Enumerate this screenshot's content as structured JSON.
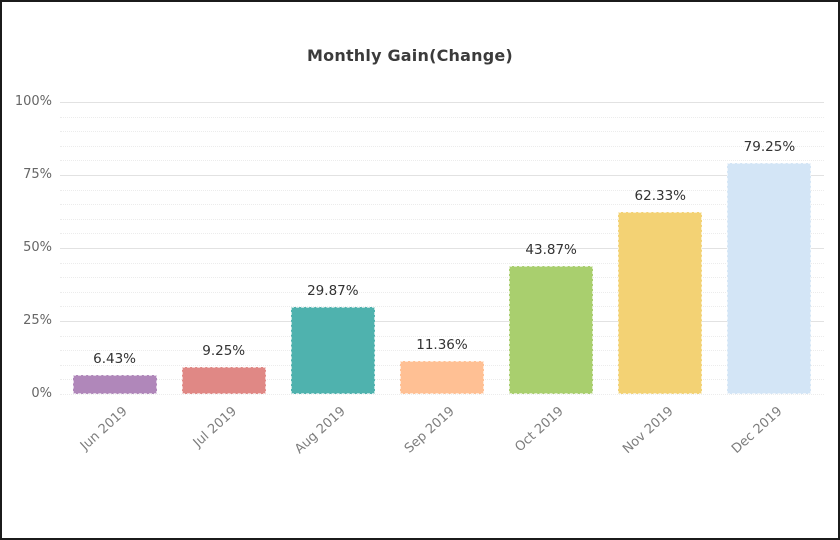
{
  "chart_data": {
    "type": "bar",
    "title": "Monthly Gain(Change)",
    "categories": [
      "Jun 2019",
      "Jul 2019",
      "Aug 2019",
      "Sep 2019",
      "Oct 2019",
      "Nov 2019",
      "Dec 2019"
    ],
    "values": [
      6.43,
      9.25,
      29.87,
      11.36,
      43.87,
      62.33,
      79.25
    ],
    "value_labels": [
      "6.43%",
      "9.25%",
      "29.87%",
      "11.36%",
      "43.87%",
      "62.33%",
      "79.25%"
    ],
    "bar_colors": [
      "#b087ba",
      "#e08885",
      "#4fb2ae",
      "#ffc094",
      "#a9cf6e",
      "#f3d274",
      "#d3e5f6"
    ],
    "xlabel": "",
    "ylabel": "",
    "ylim": [
      0,
      100
    ],
    "y_ticks": [
      {
        "value": 0,
        "label": "0%"
      },
      {
        "value": 25,
        "label": "25%"
      },
      {
        "value": 50,
        "label": "50%"
      },
      {
        "value": 75,
        "label": "75%"
      },
      {
        "value": 100,
        "label": "100%"
      }
    ],
    "y_minor_step": 5,
    "y_major_step": 25,
    "grid": "on",
    "legend": "none"
  },
  "style": {
    "background": "#ffffff",
    "frame_border": "#1b1b1b",
    "title_color": "#3b3b3b",
    "value_label_color": "#333333",
    "y_tick_color": "#666666",
    "x_tick_color": "#7d7d7d",
    "major_grid": "#e2e2e2",
    "minor_grid": "#ececec"
  }
}
